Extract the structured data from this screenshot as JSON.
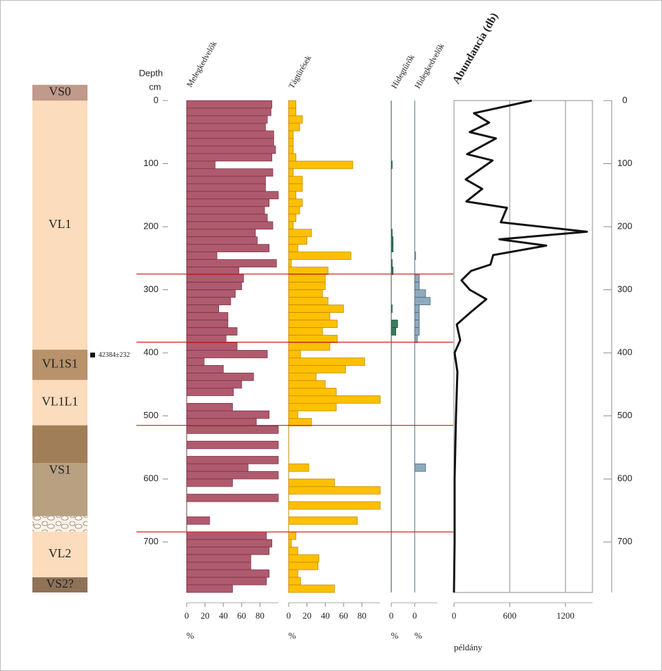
{
  "chart_data": {
    "type": "stratigraphic",
    "ylabel": "Depth",
    "yunit": "cm",
    "ylim": [
      0,
      780
    ],
    "yticks": [
      0,
      100,
      200,
      300,
      400,
      500,
      600,
      700
    ],
    "units": [
      {
        "name": "VS0",
        "top": -25,
        "bottom": 0,
        "color": "#c09a8a"
      },
      {
        "name": "VL1",
        "top": 0,
        "bottom": 395,
        "color": "#fbdcbc"
      },
      {
        "name": "VL1S1",
        "top": 395,
        "bottom": 443,
        "color": "#b7926a"
      },
      {
        "name": "VL1L1",
        "top": 443,
        "bottom": 515,
        "color": "#fbdcbc"
      },
      {
        "name": "VS1",
        "top": 515,
        "bottom": 659,
        "split": 575,
        "colors": [
          "#a07e58",
          "#b8a080"
        ]
      },
      {
        "name": null,
        "top": 659,
        "bottom": 684,
        "pattern": "gravel"
      },
      {
        "name": "VL2",
        "top": 684,
        "bottom": 756,
        "color": "#fbdcbc"
      },
      {
        "name": "VS2?",
        "top": 756,
        "bottom": 780,
        "color": "#8f7358"
      }
    ],
    "date": {
      "label": "42384±232",
      "depth": 404
    },
    "boundaries": [
      275,
      383,
      515,
      684
    ],
    "boundary_color": "#d62020",
    "depths": [
      0,
      12,
      24,
      36,
      48,
      60,
      72,
      84,
      96,
      108,
      120,
      132,
      144,
      156,
      168,
      180,
      192,
      204,
      216,
      228,
      240,
      252,
      264,
      276,
      288,
      300,
      312,
      324,
      336,
      348,
      360,
      372,
      384,
      396,
      408,
      420,
      432,
      444,
      456,
      468,
      480,
      492,
      504,
      516,
      528,
      540,
      552,
      564,
      576,
      588,
      600,
      612,
      624,
      636,
      648,
      660,
      672,
      684,
      696,
      708,
      720,
      732,
      744,
      756,
      768
    ],
    "panels": [
      {
        "title": "Melegkedvelők",
        "type": "bar",
        "color": "#b05a6e",
        "edgecolor": "#7a3447",
        "xlim": [
          0,
          100
        ],
        "xticks": [
          0,
          20,
          40,
          60,
          80
        ],
        "xlabel": "%",
        "values": [
          93,
          92,
          88,
          86,
          95,
          95,
          97,
          93,
          31,
          94,
          86,
          86,
          100,
          90,
          85,
          88,
          94,
          75,
          77,
          90,
          33,
          98,
          57,
          62,
          60,
          53,
          48,
          35,
          45,
          45,
          55,
          43,
          55,
          88,
          19,
          40,
          73,
          60,
          51,
          0,
          50,
          90,
          76,
          100,
          0,
          100,
          0,
          100,
          67,
          100,
          50,
          0,
          100,
          0,
          0,
          25,
          0,
          87,
          93,
          90,
          70,
          70,
          90,
          87,
          50
        ]
      },
      {
        "title": "Tágtűrések",
        "type": "bar",
        "color": "#ffc000",
        "edgecolor": "#c08a00",
        "xlim": [
          0,
          100
        ],
        "xticks": [
          0,
          20,
          40,
          60,
          80
        ],
        "xlabel": "%",
        "values": [
          8,
          8,
          15,
          12,
          5,
          5,
          5,
          8,
          70,
          5,
          15,
          15,
          8,
          15,
          12,
          8,
          5,
          25,
          20,
          10,
          68,
          3,
          43,
          40,
          40,
          37,
          43,
          60,
          45,
          53,
          37,
          53,
          45,
          13,
          83,
          62,
          30,
          40,
          52,
          100,
          52,
          10,
          25,
          0,
          0,
          0,
          0,
          0,
          22,
          0,
          50,
          100,
          0,
          100,
          0,
          75,
          0,
          8,
          3,
          10,
          33,
          32,
          10,
          13,
          50
        ]
      },
      {
        "title": "Hidegtűrők",
        "type": "bar",
        "color": "#3a7d5f",
        "edgecolor": "#245040",
        "xlim": [
          0,
          25
        ],
        "xticks": [
          0
        ],
        "xlabel": "%",
        "values": [
          0,
          0,
          0,
          0,
          0,
          0,
          0,
          0,
          1,
          0,
          0,
          0,
          0,
          0,
          0,
          0,
          0,
          1,
          2,
          2,
          0,
          1,
          2,
          0,
          0,
          0,
          0,
          1,
          0,
          7,
          5,
          0,
          0,
          0,
          0,
          0,
          0,
          0,
          0,
          0,
          0,
          0,
          0,
          0,
          0,
          0,
          0,
          0,
          0,
          0,
          0,
          0,
          0,
          0,
          0,
          0,
          0,
          0,
          0,
          0,
          0,
          0,
          0,
          0,
          0
        ]
      },
      {
        "title": "Hidegkedvelők",
        "type": "bar",
        "color": "#8faabd",
        "edgecolor": "#4f6a7d",
        "xlim": [
          0,
          25
        ],
        "xticks": [
          0
        ],
        "xlabel": "%",
        "values": [
          0,
          0,
          0,
          0,
          0,
          0,
          0,
          0,
          0,
          0,
          0,
          0,
          0,
          0,
          0,
          0,
          0,
          0,
          0,
          0,
          1,
          0,
          0,
          5,
          5,
          12,
          17,
          5,
          5,
          5,
          5,
          3,
          0,
          0,
          0,
          0,
          0,
          0,
          0,
          0,
          0,
          0,
          0,
          0,
          0,
          0,
          0,
          0,
          12,
          0,
          0,
          0,
          0,
          0,
          0,
          0,
          0,
          0,
          0,
          0,
          0,
          0,
          0,
          0,
          0
        ]
      },
      {
        "title": "Abundancia (db)",
        "type": "line",
        "color": "#111111",
        "xlim": [
          0,
          1490
        ],
        "xticks": [
          0,
          600,
          1200
        ],
        "xlabel": "példány",
        "grid": true,
        "depth": [
          0,
          20,
          35,
          50,
          60,
          85,
          95,
          125,
          140,
          160,
          170,
          193,
          208,
          220,
          230,
          245,
          260,
          270,
          285,
          300,
          315,
          335,
          355,
          380,
          400,
          430,
          500,
          600,
          700,
          780
        ],
        "values": [
          837,
          215,
          378,
          170,
          452,
          141,
          415,
          126,
          304,
          133,
          570,
          504,
          1430,
          489,
          993,
          422,
          393,
          185,
          81,
          170,
          348,
          185,
          30,
          67,
          7,
          37,
          22,
          7,
          7,
          0
        ]
      }
    ]
  }
}
